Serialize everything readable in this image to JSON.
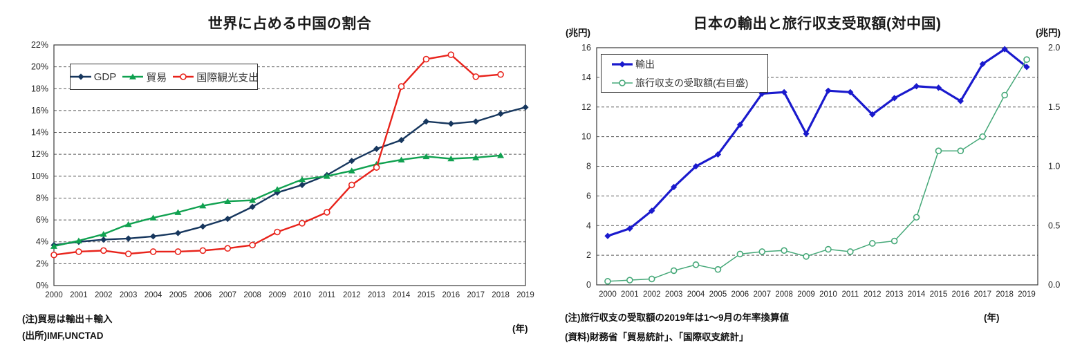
{
  "chart_data": [
    {
      "type": "line",
      "title": "世界に占める中国の割合",
      "categories": [
        "2000",
        "2001",
        "2002",
        "2003",
        "2004",
        "2005",
        "2006",
        "2007",
        "2008",
        "2009",
        "2010",
        "2011",
        "2012",
        "2013",
        "2014",
        "2015",
        "2016",
        "2017",
        "2018",
        "2019"
      ],
      "ylim": [
        0,
        22
      ],
      "yticks": [
        "0%",
        "2%",
        "4%",
        "6%",
        "8%",
        "10%",
        "12%",
        "14%",
        "16%",
        "18%",
        "20%",
        "22%"
      ],
      "grid": "horizontal-dashed",
      "legend_position": "top-left-inside",
      "series": [
        {
          "name": "GDP",
          "color": "#17375E",
          "marker": "diamond",
          "line_width": 2.4,
          "values": [
            3.7,
            4.0,
            4.2,
            4.3,
            4.5,
            4.8,
            5.4,
            6.1,
            7.2,
            8.5,
            9.2,
            10.1,
            11.4,
            12.5,
            13.3,
            15.0,
            14.8,
            15.0,
            15.7,
            16.3
          ]
        },
        {
          "name": "貿易",
          "color": "#10A150",
          "marker": "triangle",
          "line_width": 2.4,
          "values": [
            3.6,
            4.1,
            4.7,
            5.6,
            6.2,
            6.7,
            7.3,
            7.7,
            7.8,
            8.8,
            9.7,
            10.0,
            10.5,
            11.1,
            11.5,
            11.8,
            11.6,
            11.7,
            11.9,
            null
          ]
        },
        {
          "name": "国際観光支出",
          "color": "#E8231B",
          "marker": "circle-open",
          "line_width": 2.4,
          "values": [
            2.8,
            3.1,
            3.2,
            2.9,
            3.1,
            3.1,
            3.2,
            3.4,
            3.7,
            4.9,
            5.7,
            6.7,
            9.2,
            10.8,
            18.2,
            20.7,
            21.1,
            19.1,
            19.3,
            null
          ]
        }
      ],
      "notes": [
        "(注)貿易は輸出＋輸入",
        "(出所)IMF,UNCTAD"
      ],
      "x_unit_label": "(年)"
    },
    {
      "type": "line",
      "title": "日本の輸出と旅行収支受取額(対中国)",
      "left_axis_unit": "(兆円)",
      "right_axis_unit": "(兆円)",
      "categories": [
        "2000",
        "2001",
        "2002",
        "2003",
        "2004",
        "2005",
        "2006",
        "2007",
        "2008",
        "2009",
        "2010",
        "2011",
        "2012",
        "2013",
        "2014",
        "2015",
        "2016",
        "2017",
        "2018",
        "2019"
      ],
      "ylim_left": [
        0,
        16
      ],
      "yticks_left": [
        "0",
        "2",
        "4",
        "6",
        "8",
        "10",
        "12",
        "14",
        "16"
      ],
      "ylim_right": [
        0,
        2
      ],
      "yticks_right": [
        "0.0",
        "0.5",
        "1.0",
        "1.5",
        "2.0"
      ],
      "grid": "horizontal-dashed",
      "legend_position": "top-left-inside",
      "series": [
        {
          "name": "輸出",
          "axis": "left",
          "color": "#1A1ACD",
          "marker": "diamond",
          "line_width": 3.2,
          "values": [
            3.3,
            3.8,
            5.0,
            6.6,
            8.0,
            8.8,
            10.8,
            12.9,
            13.0,
            10.2,
            13.1,
            13.0,
            11.5,
            12.6,
            13.4,
            13.3,
            12.4,
            14.9,
            15.9,
            14.7
          ]
        },
        {
          "name": "旅行収支の受取額(右目盛)",
          "axis": "right",
          "color": "#45A878",
          "marker": "circle-open",
          "line_width": 1.5,
          "values": [
            0.03,
            0.04,
            0.05,
            0.12,
            0.17,
            0.13,
            0.26,
            0.28,
            0.29,
            0.24,
            0.3,
            0.28,
            0.35,
            0.37,
            0.57,
            1.13,
            1.13,
            1.25,
            1.6,
            1.9
          ]
        }
      ],
      "notes": [
        "(注)旅行収支の受取額の2019年は1～9月の年率換算値",
        "(資料)財務省「貿易統計」、「国際収支統計」"
      ],
      "x_unit_label": "(年)"
    }
  ]
}
